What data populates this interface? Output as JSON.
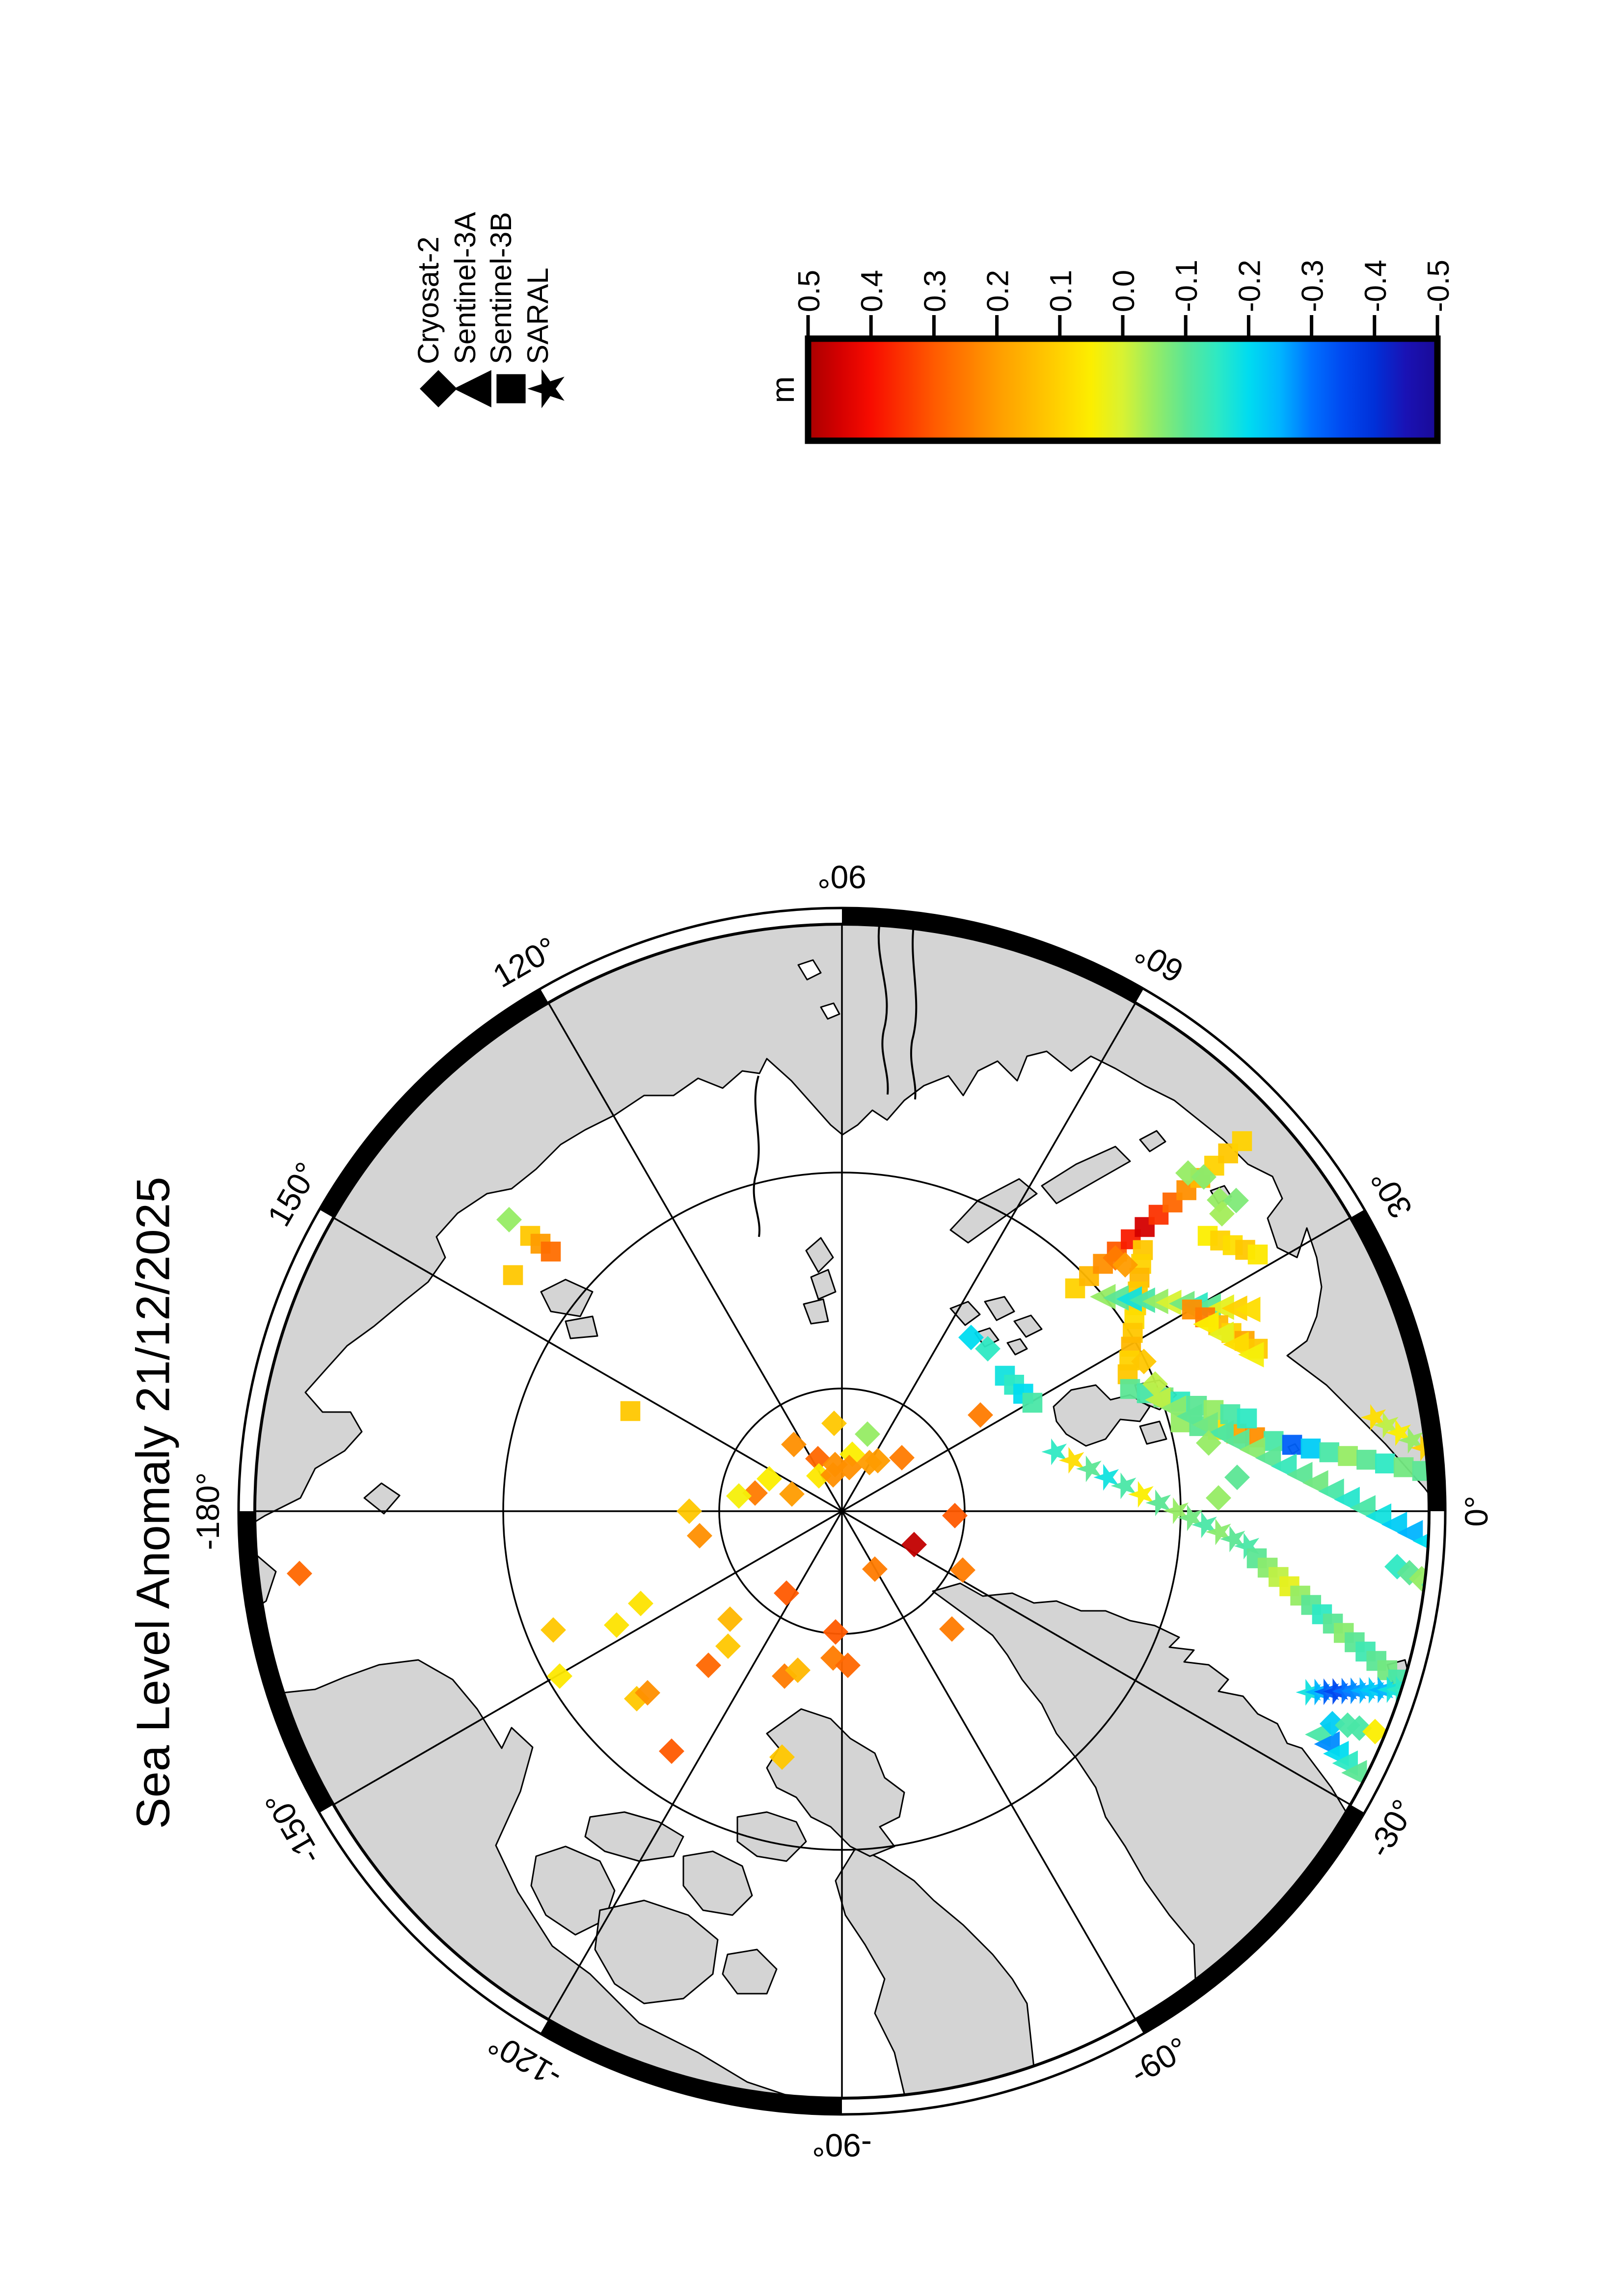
{
  "title": "Sea Level Anomaly 21/12/2025",
  "legend": {
    "items": [
      {
        "label": "Cryosat-2",
        "symbol": "diamond"
      },
      {
        "label": "Sentinel-3A",
        "symbol": "triangle"
      },
      {
        "label": "Sentinel-3B",
        "symbol": "square"
      },
      {
        "label": "SARAL",
        "symbol": "star"
      }
    ]
  },
  "colorbar": {
    "unit": "m",
    "tick_labels": [
      "0.5",
      "0.4",
      "0.3",
      "0.2",
      "0.1",
      "0.0",
      "-0.1",
      "-0.2",
      "-0.3",
      "-0.4",
      "-0.5"
    ],
    "max": 0.5,
    "min": -0.5
  },
  "map": {
    "lon_labels": [
      {
        "text": "90°",
        "az": 0,
        "rot": 180
      },
      {
        "text": "60°",
        "az": 30,
        "rot": 210
      },
      {
        "text": "30°",
        "az": 60,
        "rot": 240
      },
      {
        "text": "0°",
        "az": 90,
        "rot": 270
      },
      {
        "text": "-30°",
        "az": 120,
        "rot": 300
      },
      {
        "text": "-60°",
        "az": 150,
        "rot": 330
      },
      {
        "text": "-90°",
        "az": 180,
        "rot": 180
      },
      {
        "text": "-120°",
        "az": 210,
        "rot": 210
      },
      {
        "text": "-150°",
        "az": 240,
        "rot": 240
      },
      {
        "text": "-180°",
        "az": 270,
        "rot": 270
      },
      {
        "text": "150°",
        "az": 300,
        "rot": 300
      },
      {
        "text": "120°",
        "az": 330,
        "rot": 330
      }
    ],
    "land_color": "#d4d4d4",
    "ocean_color": "#ffffff"
  },
  "chart_data": {
    "type": "scatter",
    "title": "Sea Level Anomaly 21/12/2025",
    "date": "21/12/2025",
    "units": "m",
    "projection": "north polar stereographic, pole-centered, 90E at top (page rotated)",
    "colorbar_range": [
      -0.5,
      0.5
    ],
    "colormap": [
      {
        "t": 0.0,
        "c": "#a80000"
      },
      {
        "t": 0.05,
        "c": "#d40000"
      },
      {
        "t": 0.1,
        "c": "#f80c00"
      },
      {
        "t": 0.2,
        "c": "#ff5a00"
      },
      {
        "t": 0.3,
        "c": "#ff9c00"
      },
      {
        "t": 0.4,
        "c": "#ffd200"
      },
      {
        "t": 0.45,
        "c": "#fcee00"
      },
      {
        "t": 0.5,
        "c": "#d8f232"
      },
      {
        "t": 0.55,
        "c": "#96ec64"
      },
      {
        "t": 0.6,
        "c": "#5ce695"
      },
      {
        "t": 0.65,
        "c": "#2ee9c3"
      },
      {
        "t": 0.7,
        "c": "#00dcf0"
      },
      {
        "t": 0.75,
        "c": "#00b4ff"
      },
      {
        "t": 0.8,
        "c": "#0070ff"
      },
      {
        "t": 0.85,
        "c": "#0048f0"
      },
      {
        "t": 0.9,
        "c": "#0030d8"
      },
      {
        "t": 0.95,
        "c": "#1a12b4"
      },
      {
        "t": 1.0,
        "c": "#1a0a96"
      }
    ],
    "legend_shapes": {
      "d": "Cryosat-2 diamond",
      "t": "Sentinel-3A triangle",
      "s": "Sentinel-3B square",
      "r": "SARAL star"
    },
    "points": [
      [
        1699,
        2900,
        0.12
      ],
      [
        1617,
        2943,
        0.22
      ],
      [
        1767,
        2922,
        -0.05
      ],
      [
        1736,
        2963,
        0.05
      ],
      [
        1666,
        2972,
        0.28
      ],
      [
        1701,
        2984,
        0.22
      ],
      [
        1730,
        2990,
        0.22
      ],
      [
        1771,
        2980,
        0.2
      ],
      [
        1788,
        2976,
        0.2
      ],
      [
        1837,
        2970,
        0.25
      ],
      [
        1668,
        3007,
        0.06
      ],
      [
        1697,
        3005,
        0.22
      ],
      [
        1567,
        3013,
        0.05
      ],
      [
        1538,
        3042,
        0.25
      ],
      [
        1505,
        3048,
        0.04
      ],
      [
        1613,
        3044,
        0.2
      ],
      [
        1425,
        3129,
        0.22
      ],
      [
        1404,
        3079,
        0.12
      ],
      [
        1862,
        3147,
        0.47
      ],
      [
        1782,
        3197,
        0.25
      ],
      [
        1602,
        3246,
        0.3
      ],
      [
        1961,
        3199,
        0.25
      ],
      [
        1939,
        3319,
        0.25
      ],
      [
        1483,
        3354,
        0.12
      ],
      [
        1697,
        3378,
        0.25
      ],
      [
        1305,
        3267,
        0.07
      ],
      [
        1256,
        3311,
        0.07
      ],
      [
        1487,
        3299,
        0.15
      ],
      [
        1140,
        3415,
        0.06
      ],
      [
        1443,
        3393,
        0.28
      ],
      [
        1702,
        3325,
        0.3
      ],
      [
        1727,
        3393,
        0.28
      ],
      [
        1598,
        3415,
        0.25
      ],
      [
        1625,
        3403,
        0.15
      ],
      [
        1297,
        3461,
        0.12
      ],
      [
        1319,
        3449,
        0.22
      ],
      [
        1368,
        3568,
        0.3
      ],
      [
        1593,
        3580,
        0.12
      ],
      [
        1037,
        2485,
        -0.05
      ],
      [
        1045,
        2598,
        0.12,
        "s"
      ],
      [
        1284,
        2875,
        0.12,
        "s"
      ],
      [
        610,
        3206,
        0.28
      ],
      [
        1127,
        3321,
        0.12
      ],
      [
        2420,
        2390,
        -0.05
      ],
      [
        2452,
        2398,
        -0.06
      ],
      [
        2484,
        2445,
        -0.05
      ],
      [
        2518,
        2446,
        -0.07
      ],
      [
        2489,
        2473,
        -0.04
      ],
      [
        2272,
        2563,
        0.25
      ],
      [
        2292,
        2577,
        0.2
      ],
      [
        1997,
        2883,
        0.25
      ],
      [
        1945,
        3088,
        0.3
      ],
      [
        1978,
        2725,
        -0.2
      ],
      [
        2012,
        2748,
        -0.15
      ],
      [
        2330,
        2774,
        0.12
      ],
      [
        2353,
        2820,
        -0.02
      ],
      [
        2714,
        3512,
        -0.22
      ],
      [
        2745,
        3515,
        -0.12
      ],
      [
        2769,
        3521,
        -0.12
      ],
      [
        2801,
        3528,
        0.05
      ],
      [
        2462,
        2940,
        -0.05
      ],
      [
        2520,
        3010,
        -0.1
      ],
      [
        2482,
        3052,
        -0.05
      ]
    ],
    "tracks": [
      {
        "shape": "s",
        "from": [
          2190,
          2625
        ],
        "to": [
          2530,
          2325
        ],
        "values": [
          0.1,
          0.15,
          0.22,
          0.3,
          0.38,
          0.45,
          0.35,
          0.28,
          0.22,
          0.15,
          0.1,
          0.12,
          0.1
        ]
      },
      {
        "shape": "s",
        "from": [
          2328,
          2547
        ],
        "to": [
          2297,
          2800
        ],
        "values": [
          0.12,
          0.1,
          0.15,
          0.12,
          0.1,
          0.08,
          0.12,
          0.15,
          0.1,
          0.12
        ]
      },
      {
        "shape": "t",
        "from": [
          2250,
          2642
        ],
        "to": [
          2545,
          2668
        ],
        "values": [
          -0.05,
          -0.1,
          -0.18,
          -0.12,
          -0.05,
          0.0,
          -0.08,
          -0.15,
          -0.1,
          0.02,
          0.1,
          0.08
        ]
      },
      {
        "shape": "s",
        "from": [
          2428,
          2668
        ],
        "to": [
          2562,
          2748
        ],
        "values": [
          0.22,
          0.25,
          0.15,
          0.1,
          0.18,
          0.12
        ]
      },
      {
        "shape": "s",
        "from": [
          2405,
          2898
        ],
        "to": [
          2897,
          2997
        ],
        "values": [
          -0.05,
          -0.1,
          0.08,
          0.18,
          0.22,
          -0.12,
          -0.32,
          -0.22,
          -0.12,
          -0.05,
          -0.1,
          -0.15,
          -0.08,
          -0.1
        ]
      },
      {
        "shape": "s",
        "from": [
          2302,
          2830
        ],
        "to": [
          2540,
          2890
        ],
        "values": [
          -0.1,
          -0.12,
          -0.08,
          -0.15,
          -0.1,
          -0.05,
          -0.12,
          -0.15
        ]
      },
      {
        "shape": "t",
        "from": [
          2362,
          2852
        ],
        "to": [
          2908,
          3140
        ],
        "values": [
          -0.02,
          -0.06,
          -0.1,
          -0.08,
          -0.12,
          -0.1,
          -0.06,
          -0.1,
          -0.14,
          -0.1,
          -0.08,
          -0.12,
          -0.16,
          -0.12,
          -0.18,
          -0.22,
          -0.25,
          -0.2
        ]
      },
      {
        "shape": "s",
        "from": [
          2047,
          2803
        ],
        "to": [
          2103,
          2858
        ],
        "values": [
          -0.18,
          -0.15,
          -0.2,
          -0.12
        ]
      },
      {
        "shape": "r",
        "from": [
          2150,
          2958
        ],
        "to": [
          2362,
          3062
        ],
        "values": [
          -0.15,
          0.08,
          -0.1,
          -0.18,
          -0.12,
          0.05,
          -0.1
        ]
      },
      {
        "shape": "r",
        "from": [
          2398,
          3078
        ],
        "to": [
          2542,
          3150
        ],
        "values": [
          -0.05,
          -0.08,
          -0.12,
          -0.06,
          -0.1,
          -0.12
        ]
      },
      {
        "shape": "s",
        "from": [
          2560,
          3175
        ],
        "to": [
          2848,
          3422
        ],
        "values": [
          -0.1,
          -0.06,
          -0.02,
          0.02,
          -0.05,
          -0.1,
          -0.15,
          -0.1,
          -0.06,
          -0.1,
          -0.13,
          -0.1,
          -0.08,
          -0.12
        ]
      },
      {
        "shape": "r",
        "from": [
          2668,
          3448
        ],
        "to": [
          2852,
          3442
        ],
        "values": [
          -0.18,
          -0.25,
          -0.32,
          -0.35,
          -0.3,
          -0.28,
          -0.25,
          -0.22,
          -0.25,
          -0.18,
          -0.15
        ]
      },
      {
        "shape": "t",
        "from": [
          2688,
          3534
        ],
        "to": [
          2762,
          3612
        ],
        "values": [
          -0.12,
          -0.28,
          -0.2,
          -0.15,
          -0.1
        ]
      },
      {
        "shape": "r",
        "from": [
          2800,
          2888
        ],
        "to": [
          2902,
          2950
        ],
        "values": [
          0.08,
          -0.02,
          0.05,
          -0.05,
          0.1
        ]
      },
      {
        "shape": "d",
        "from": [
          2846,
          3192
        ],
        "to": [
          2996,
          3266
        ],
        "values": [
          -0.15,
          -0.1,
          -0.05,
          -0.12,
          -0.18,
          -0.1,
          -0.15
        ]
      },
      {
        "shape": "r",
        "from": [
          2845,
          3553
        ],
        "to": [
          2942,
          3622
        ],
        "values": [
          -0.15,
          -0.1,
          -0.18,
          -0.12
        ]
      },
      {
        "shape": "s",
        "from": [
          2460,
          2518
        ],
        "to": [
          2562,
          2556
        ],
        "values": [
          0.05,
          0.1,
          0.08,
          0.12,
          0.06
        ]
      },
      {
        "shape": "t",
        "from": [
          2460,
          2698
        ],
        "to": [
          2552,
          2760
        ],
        "values": [
          0.05,
          0.02,
          0.08,
          0.04
        ]
      },
      {
        "shape": "s",
        "from": [
          1080,
          2518
        ],
        "to": [
          1122,
          2550
        ],
        "values": [
          0.12,
          0.2,
          0.27
        ]
      }
    ]
  }
}
